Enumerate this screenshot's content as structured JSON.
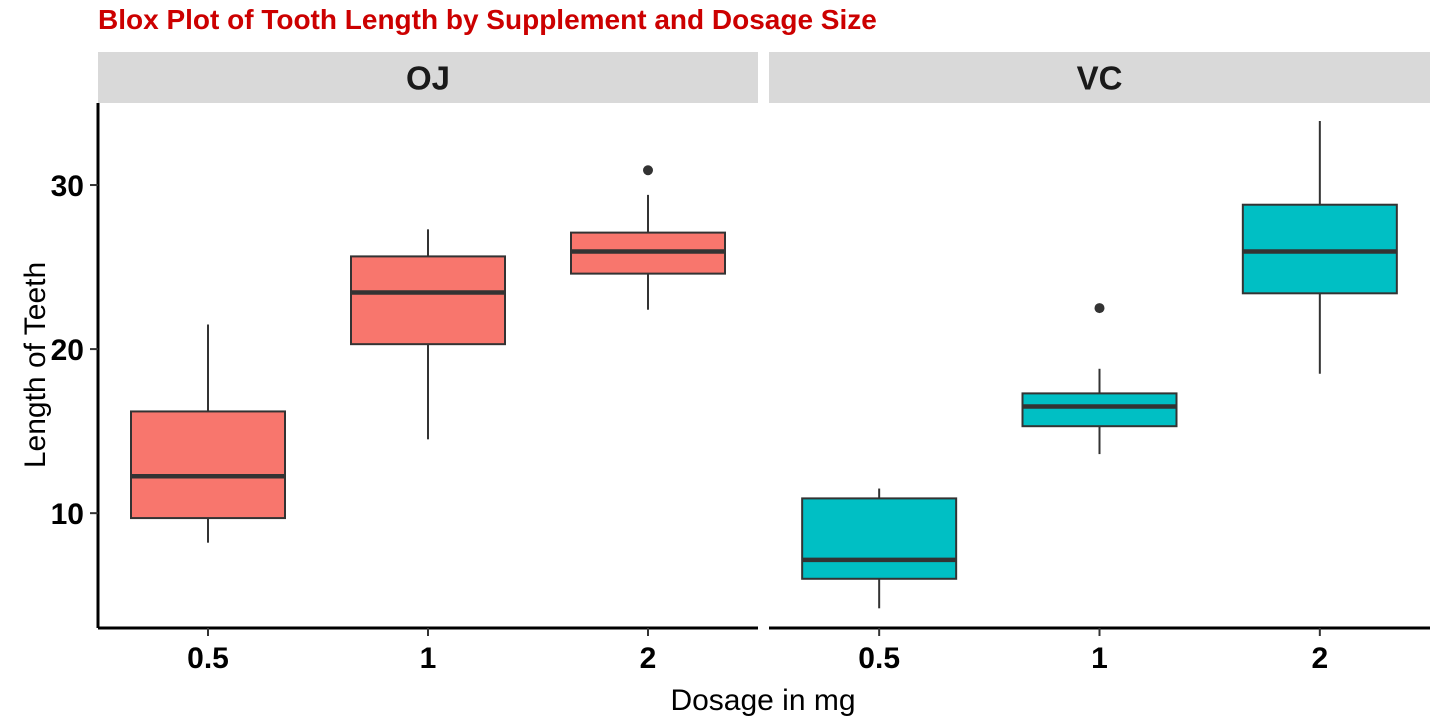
{
  "chart_data": {
    "type": "boxplot",
    "title": "Blox Plot of Tooth Length by Supplement and Dosage Size",
    "xlabel": "Dosage in mg",
    "ylabel": "Length of Teeth",
    "ylim": [
      3.0,
      35.0
    ],
    "yticks": [
      10,
      20,
      30
    ],
    "ytick_labels": [
      "10",
      "20",
      "30"
    ],
    "categories": [
      "0.5",
      "1",
      "2"
    ],
    "grid": false,
    "facets": [
      {
        "label": "OJ",
        "fill": "#F8766D",
        "boxes": [
          {
            "category": "0.5",
            "whisker_low": 8.2,
            "q1": 9.7,
            "median": 12.25,
            "q3": 16.2,
            "whisker_high": 21.5,
            "outliers": []
          },
          {
            "category": "1",
            "whisker_low": 14.5,
            "q1": 20.3,
            "median": 23.45,
            "q3": 25.65,
            "whisker_high": 27.3,
            "outliers": []
          },
          {
            "category": "2",
            "whisker_low": 22.4,
            "q1": 24.6,
            "median": 25.95,
            "q3": 27.1,
            "whisker_high": 29.4,
            "outliers": [
              30.9
            ]
          }
        ]
      },
      {
        "label": "VC",
        "fill": "#00BFC4",
        "boxes": [
          {
            "category": "0.5",
            "whisker_low": 4.2,
            "q1": 6.0,
            "median": 7.15,
            "q3": 10.9,
            "whisker_high": 11.5,
            "outliers": []
          },
          {
            "category": "1",
            "whisker_low": 13.6,
            "q1": 15.3,
            "median": 16.5,
            "q3": 17.3,
            "whisker_high": 18.8,
            "outliers": [
              22.5
            ]
          },
          {
            "category": "2",
            "whisker_low": 18.5,
            "q1": 23.4,
            "median": 25.95,
            "q3": 28.8,
            "whisker_high": 33.9,
            "outliers": []
          }
        ]
      }
    ]
  },
  "colors": {
    "title": "#cc0000",
    "strip": "#d9d9d9",
    "box_line": "#333333",
    "axis": "#000000"
  }
}
